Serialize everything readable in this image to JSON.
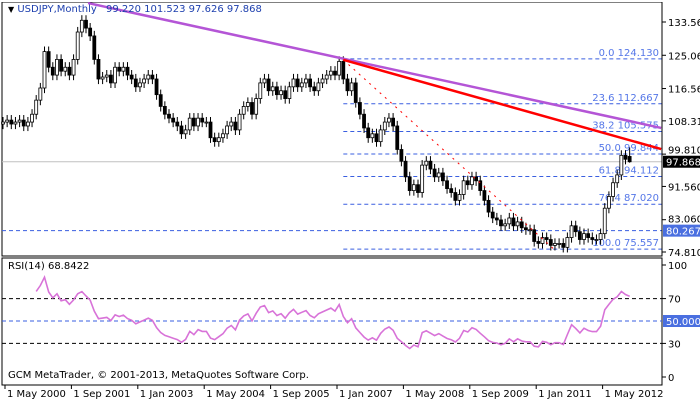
{
  "header": {
    "symbol_label": "USDJPY,Monthly",
    "ohlc_text": "99.220 101.523 97.626 97.868"
  },
  "rsi_header": "RSI(14) 68.8422",
  "watermark": "GCM MetaTrader, © 2001-2013, MetaQuotes Software Corp.",
  "colors": {
    "bull": "#ffffff",
    "bear": "#000000",
    "fib": "#3a5fe0",
    "trend_purple": "#b455d6",
    "trend_red": "#ff0000",
    "rsi": "#d873d8",
    "current_price_box": "#000000",
    "level_box": "#4a6fe0"
  },
  "chart_data": [
    {
      "type": "candlestick",
      "symbol": "USDJPY",
      "timeframe": "Monthly",
      "first_bar": "May 2000",
      "bar_step": "1 month",
      "last_bar": {
        "open": 99.22,
        "high": 101.523,
        "low": 97.626,
        "close": 97.868
      },
      "close": [
        108,
        108.5,
        107.5,
        108,
        108.5,
        107,
        108,
        110,
        113.6,
        116.7,
        126,
        122,
        120,
        124,
        121,
        122,
        120,
        124,
        131,
        134,
        132,
        130,
        124,
        119,
        119.5,
        120,
        118,
        122,
        121,
        122,
        120,
        119,
        117,
        118,
        119,
        120,
        119,
        115,
        112,
        110,
        109,
        108,
        107,
        105,
        106,
        109,
        107,
        109,
        108,
        108,
        104,
        103,
        104,
        105,
        107,
        108,
        106,
        110,
        112,
        113,
        110,
        114,
        118,
        119,
        116,
        117,
        115,
        116,
        114,
        117,
        119,
        117,
        118,
        119,
        117,
        116,
        118,
        119,
        120,
        121,
        120,
        123.5,
        119,
        116,
        118,
        113,
        110,
        106.5,
        104,
        105,
        103,
        106,
        108,
        109,
        107,
        101,
        98,
        94,
        90.5,
        92,
        90,
        97,
        98,
        96,
        94,
        95,
        93,
        91,
        90,
        88,
        89.5,
        93,
        92,
        94,
        93,
        90.5,
        88,
        85,
        83.5,
        83,
        81.5,
        82,
        83.5,
        81.5,
        82.5,
        81,
        80.5,
        80.5,
        77.5,
        77,
        78.5,
        78,
        76.5,
        77,
        77,
        76,
        78.5,
        81.5,
        80,
        78,
        79.5,
        78.5,
        78,
        78,
        79.5,
        86,
        89,
        92.5,
        94.5,
        99.5,
        98.5,
        97.868
      ],
      "y_axis": {
        "ticks": [
          "133.560",
          "125.060",
          "116.560",
          "108.310",
          "99.810",
          "91.560",
          "83.060",
          "74.810"
        ],
        "range": [
          74.0,
          138.5
        ]
      },
      "x_axis": {
        "ticks": [
          "1 May 2000",
          "1 Sep 2001",
          "1 Jan 2003",
          "1 May 2004",
          "1 Sep 2005",
          "1 Jan 2007",
          "1 May 2008",
          "1 Sep 2009",
          "1 Jan 2011",
          "1 May 2012"
        ]
      },
      "price_lines": [
        {
          "value": 97.868,
          "label": "97.868",
          "style": "solid-grey"
        },
        {
          "value": 80.267,
          "label": "80.267",
          "style": "dashed-blue"
        }
      ],
      "fibonacci": {
        "from_bar": "Jun 2007",
        "levels": [
          {
            "label": "0.0 124.130",
            "value": 124.13
          },
          {
            "label": "23.6 112.667",
            "value": 112.667
          },
          {
            "label": "38.2 105.575",
            "value": 105.575
          },
          {
            "label": "50.0 99.844",
            "value": 99.844
          },
          {
            "label": "61.8 94.112",
            "value": 94.112
          },
          {
            "label": "76.4 87.020",
            "value": 87.02
          },
          {
            "label": "100.0 75.557",
            "value": 75.557
          }
        ]
      },
      "trendlines": [
        {
          "color": "purple",
          "from": {
            "bar": 20.5,
            "price": 138.4
          },
          "to": {
            "bar": 158.6,
            "price": 106.5
          }
        },
        {
          "color": "red",
          "from": {
            "bar": 82,
            "price": 123.9
          },
          "to": {
            "bar": 158.6,
            "price": 101.1
          }
        },
        {
          "color": "red-dotted",
          "from": {
            "bar": 82,
            "price": 123.9
          },
          "to": {
            "bar": 133,
            "price": 75.3
          }
        }
      ]
    },
    {
      "type": "line",
      "indicator": "RSI(14)",
      "y_axis": {
        "ticks": [
          "100",
          "70",
          "50.000",
          "30",
          "0"
        ],
        "range": [
          0,
          100
        ]
      },
      "levels": [
        70,
        50,
        30
      ]
    }
  ]
}
